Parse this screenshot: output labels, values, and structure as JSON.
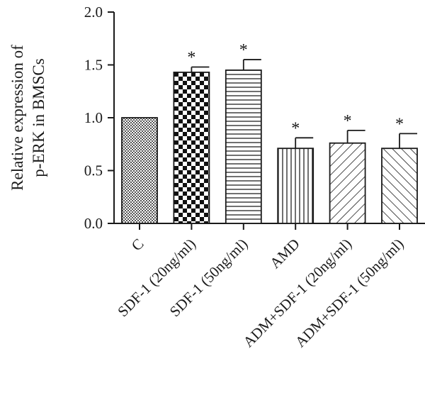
{
  "chart_data": {
    "type": "bar",
    "ylabel_lines": [
      "Relative expression of",
      "p-ERK in BMSCs"
    ],
    "ylim": [
      0,
      2.0
    ],
    "yticks": [
      "0.0",
      "0.5",
      "1.0",
      "1.5",
      "2.0"
    ],
    "categories": [
      "C",
      "SDF-1 (20ng/ml)",
      "SDF-1 (50ng/ml)",
      "AMD",
      "ADM+SDF-1 (20ng/ml)",
      "ADM+SDF-1 (50ng/ml)"
    ],
    "values": [
      1.0,
      1.43,
      1.45,
      0.71,
      0.76,
      0.71
    ],
    "errors": [
      0.0,
      0.05,
      0.1,
      0.1,
      0.12,
      0.14
    ],
    "significance": [
      "",
      "*",
      "*",
      "*",
      "*",
      "*"
    ],
    "patterns": [
      "crosshatch-fine",
      "checkerboard",
      "horizontal-lines",
      "vertical-lines",
      "diagonal-right",
      "diagonal-left"
    ],
    "grid": false,
    "legend": "none"
  }
}
